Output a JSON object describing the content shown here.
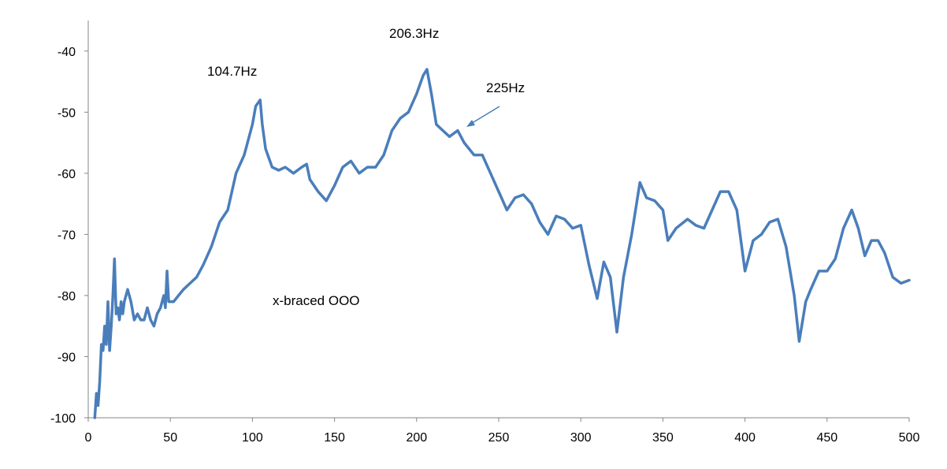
{
  "chart_data": {
    "type": "line",
    "title": "",
    "xlabel": "",
    "ylabel": "",
    "xlim": [
      0,
      500
    ],
    "ylim": [
      -100,
      -35
    ],
    "x_ticks": [
      0,
      50,
      100,
      150,
      200,
      250,
      300,
      350,
      400,
      450,
      500
    ],
    "y_ticks": [
      -100,
      -90,
      -80,
      -70,
      -60,
      -50,
      -40
    ],
    "grid": false,
    "legend": "none",
    "colors": {
      "line": "#4a7ebb",
      "axis": "#868686",
      "arrow": "#4a7ebb"
    },
    "series": [
      {
        "color": "#4a7ebb",
        "points": [
          [
            4,
            -100
          ],
          [
            5,
            -96
          ],
          [
            6,
            -98
          ],
          [
            7,
            -94
          ],
          [
            8,
            -88
          ],
          [
            9,
            -89
          ],
          [
            10,
            -85
          ],
          [
            11,
            -88
          ],
          [
            12,
            -81
          ],
          [
            13,
            -89
          ],
          [
            14,
            -85
          ],
          [
            15,
            -80
          ],
          [
            16,
            -74
          ],
          [
            17,
            -83
          ],
          [
            18,
            -82
          ],
          [
            19,
            -84
          ],
          [
            20,
            -81
          ],
          [
            21,
            -83
          ],
          [
            22,
            -81
          ],
          [
            24,
            -79
          ],
          [
            26,
            -81
          ],
          [
            28,
            -84
          ],
          [
            30,
            -83
          ],
          [
            32,
            -84
          ],
          [
            34,
            -84
          ],
          [
            36,
            -82
          ],
          [
            38,
            -84
          ],
          [
            40,
            -85
          ],
          [
            42,
            -83
          ],
          [
            44,
            -82
          ],
          [
            46,
            -80
          ],
          [
            47,
            -82
          ],
          [
            48,
            -76
          ],
          [
            49,
            -81
          ],
          [
            52,
            -81
          ],
          [
            55,
            -80
          ],
          [
            58,
            -79
          ],
          [
            62,
            -78
          ],
          [
            66,
            -77
          ],
          [
            70,
            -75
          ],
          [
            75,
            -72
          ],
          [
            80,
            -68
          ],
          [
            85,
            -66
          ],
          [
            90,
            -60
          ],
          [
            95,
            -57
          ],
          [
            100,
            -52
          ],
          [
            102,
            -49
          ],
          [
            104.7,
            -48
          ],
          [
            106,
            -52
          ],
          [
            108,
            -56
          ],
          [
            112,
            -59
          ],
          [
            116,
            -59.5
          ],
          [
            120,
            -59
          ],
          [
            125,
            -60
          ],
          [
            130,
            -59
          ],
          [
            133,
            -58.5
          ],
          [
            135,
            -61
          ],
          [
            140,
            -63
          ],
          [
            145,
            -64.5
          ],
          [
            150,
            -62
          ],
          [
            155,
            -59
          ],
          [
            160,
            -58
          ],
          [
            165,
            -60
          ],
          [
            170,
            -59
          ],
          [
            175,
            -59
          ],
          [
            180,
            -57
          ],
          [
            185,
            -53
          ],
          [
            190,
            -51
          ],
          [
            195,
            -50
          ],
          [
            200,
            -47
          ],
          [
            204,
            -44
          ],
          [
            206.3,
            -43
          ],
          [
            209,
            -47
          ],
          [
            212,
            -52
          ],
          [
            216,
            -53
          ],
          [
            220,
            -54
          ],
          [
            225,
            -53
          ],
          [
            229,
            -55
          ],
          [
            235,
            -57
          ],
          [
            240,
            -57
          ],
          [
            245,
            -60
          ],
          [
            250,
            -63
          ],
          [
            255,
            -66
          ],
          [
            260,
            -64
          ],
          [
            265,
            -63.5
          ],
          [
            270,
            -65
          ],
          [
            275,
            -68
          ],
          [
            280,
            -70
          ],
          [
            285,
            -67
          ],
          [
            290,
            -67.5
          ],
          [
            295,
            -69
          ],
          [
            300,
            -68.5
          ],
          [
            305,
            -75
          ],
          [
            310,
            -80.5
          ],
          [
            314,
            -74.5
          ],
          [
            318,
            -77
          ],
          [
            322,
            -86
          ],
          [
            326,
            -77
          ],
          [
            331,
            -70
          ],
          [
            336,
            -61.5
          ],
          [
            340,
            -64
          ],
          [
            345,
            -64.5
          ],
          [
            350,
            -66
          ],
          [
            353,
            -71
          ],
          [
            358,
            -69
          ],
          [
            365,
            -67.5
          ],
          [
            370,
            -68.5
          ],
          [
            375,
            -69
          ],
          [
            380,
            -66
          ],
          [
            385,
            -63
          ],
          [
            390,
            -63
          ],
          [
            395,
            -66
          ],
          [
            400,
            -76
          ],
          [
            405,
            -71
          ],
          [
            410,
            -70
          ],
          [
            415,
            -68
          ],
          [
            420,
            -67.5
          ],
          [
            425,
            -72
          ],
          [
            430,
            -80
          ],
          [
            433,
            -87.5
          ],
          [
            437,
            -81
          ],
          [
            440,
            -79
          ],
          [
            445,
            -76
          ],
          [
            450,
            -76
          ],
          [
            455,
            -74
          ],
          [
            460,
            -69
          ],
          [
            465,
            -66
          ],
          [
            469,
            -69
          ],
          [
            473,
            -73.5
          ],
          [
            477,
            -71
          ],
          [
            481,
            -71
          ],
          [
            485,
            -73
          ],
          [
            490,
            -77
          ],
          [
            495,
            -78
          ],
          [
            500,
            -77.5
          ]
        ]
      }
    ],
    "annotations": [
      {
        "text": "104.7Hz",
        "x": 104.7,
        "y": -48
      },
      {
        "text": "206.3Hz",
        "x": 206.3,
        "y": -43
      },
      {
        "text": "225Hz",
        "x": 225,
        "y": -53,
        "arrow": true
      },
      {
        "text": "x-braced OOO"
      }
    ]
  }
}
